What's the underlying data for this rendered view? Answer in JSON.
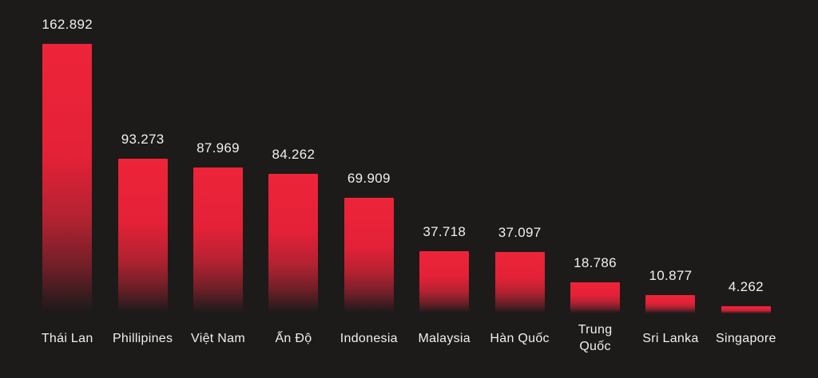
{
  "chart_data": {
    "type": "bar",
    "title": "",
    "xlabel": "",
    "ylabel": "",
    "categories": [
      "Thái Lan",
      "Phillipines",
      "Việt Nam",
      "Ấn Độ",
      "Indonesia",
      "Malaysia",
      "Hàn Quốc",
      "Trung Quốc",
      "Sri Lanka",
      "Singapore"
    ],
    "values": [
      162892,
      93273,
      87969,
      84262,
      69909,
      37718,
      37097,
      18786,
      10877,
      4262
    ],
    "value_labels": [
      "162.892",
      "93.273",
      "87.969",
      "84.262",
      "69.909",
      "37.718",
      "37.097",
      "18.786",
      "10.877",
      "4.262"
    ],
    "ylim": [
      0,
      162892
    ],
    "grid": false,
    "axes_visible": false,
    "legend": "none",
    "data_labels_position": "above-bar",
    "colors": {
      "background": "#1d1a1a",
      "label_text": "#f2efeb",
      "bar_gradient_stops": [
        "#ee2439",
        "#e32137",
        "#b22231",
        "#6e1f27",
        "#271b1c",
        "#1d1a1a"
      ],
      "bar_gradient_positions": [
        0,
        42,
        65,
        83,
        97,
        100
      ]
    }
  }
}
